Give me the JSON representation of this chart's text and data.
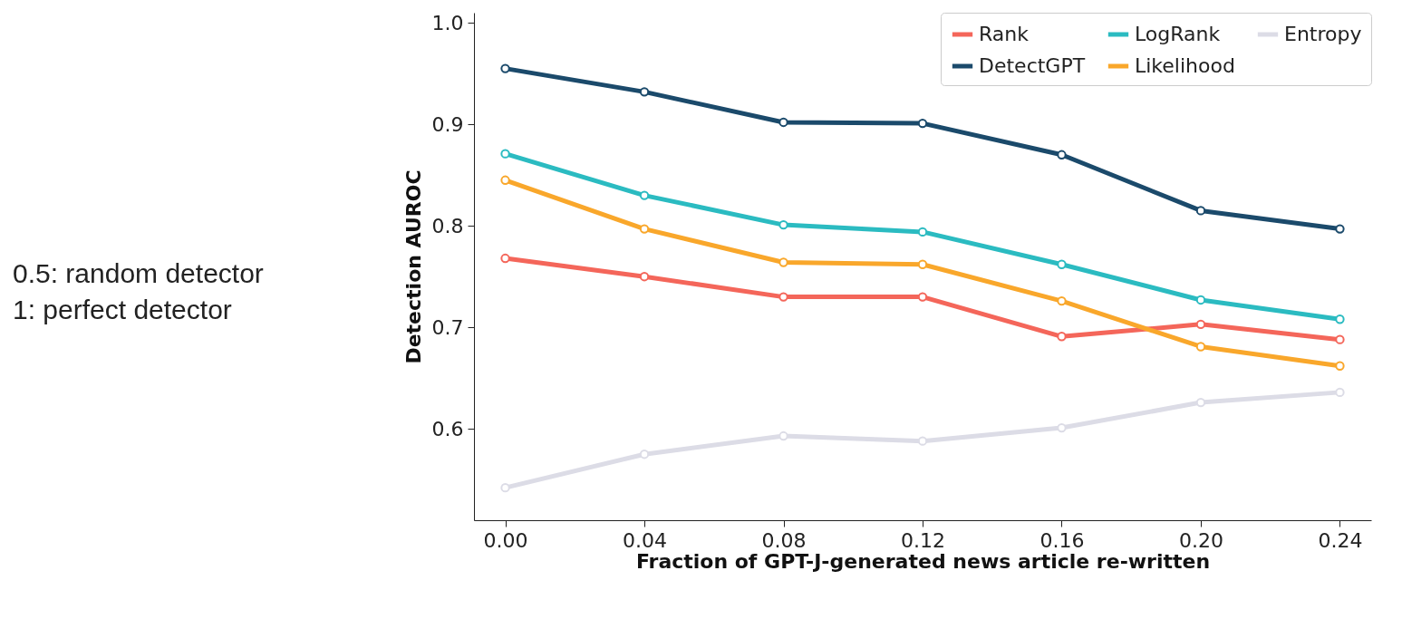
{
  "chart_data": {
    "type": "line",
    "xlabel": "Fraction of GPT-J-generated news article re-written",
    "ylabel": "Detection AUROC",
    "x": [
      0.0,
      0.04,
      0.08,
      0.12,
      0.16,
      0.2,
      0.24
    ],
    "series": [
      {
        "name": "Rank",
        "color": "#f4665a",
        "values": [
          0.768,
          0.75,
          0.73,
          0.73,
          0.691,
          0.703,
          0.688
        ]
      },
      {
        "name": "DetectGPT",
        "color": "#1b4a6b",
        "values": [
          0.955,
          0.932,
          0.902,
          0.901,
          0.87,
          0.815,
          0.797
        ]
      },
      {
        "name": "LogRank",
        "color": "#2bbbc1",
        "values": [
          0.871,
          0.83,
          0.801,
          0.794,
          0.762,
          0.727,
          0.708
        ]
      },
      {
        "name": "Likelihood",
        "color": "#f9a72b",
        "values": [
          0.845,
          0.797,
          0.764,
          0.762,
          0.726,
          0.681,
          0.662
        ]
      },
      {
        "name": "Entropy",
        "color": "#dcdce6",
        "values": [
          0.542,
          0.575,
          0.593,
          0.588,
          0.601,
          0.626,
          0.636
        ]
      }
    ],
    "xlim": [
      -0.009,
      0.249
    ],
    "xticks": [
      {
        "value": 0,
        "label": "0.00"
      },
      0.04,
      0.08,
      0.12,
      0.16,
      {
        "value": 0.2,
        "label": "0.20"
      },
      0.24
    ],
    "ylim": [
      0.51,
      1.01
    ],
    "yticks": [
      0.6,
      0.7,
      0.8,
      0.9,
      {
        "value": 1,
        "label": "1.0"
      }
    ],
    "annotations": [
      "0.5: random detector",
      "1: perfect detector"
    ],
    "legend": "top right",
    "marker": "circle",
    "line_style": "solid",
    "grid": false
  }
}
